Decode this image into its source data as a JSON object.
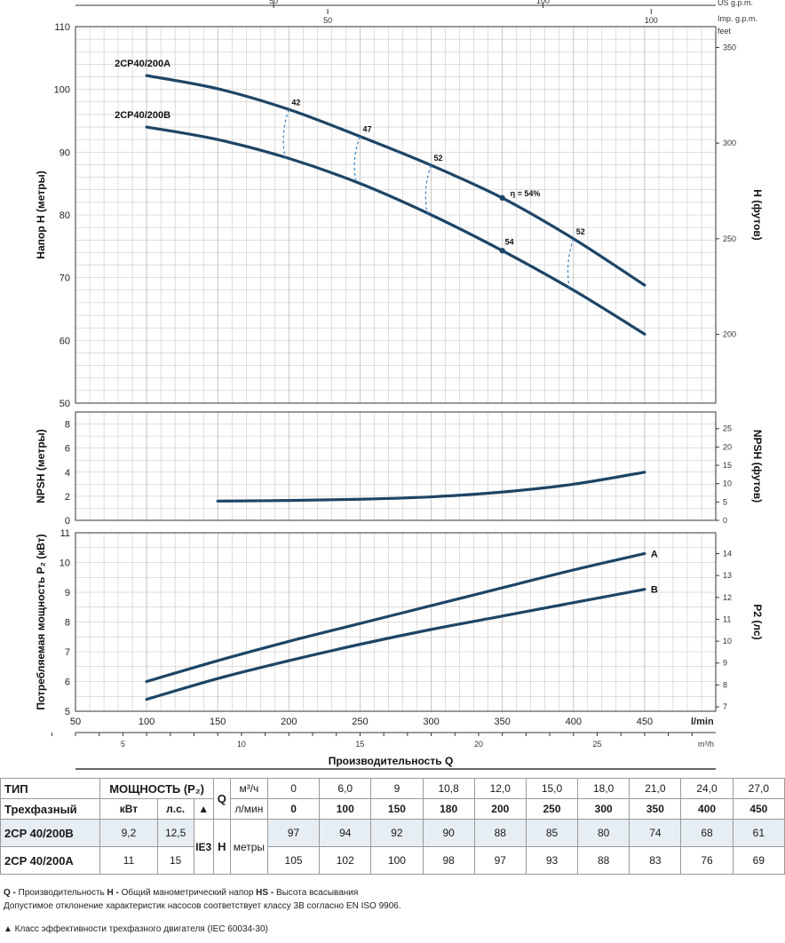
{
  "colors": {
    "curve": "#1d4566",
    "efficiency": "#3a7fc0",
    "grid": "#bfbfbf",
    "frame": "#333333",
    "row_shade": "#e6eef3"
  },
  "chart_data": [
    {
      "type": "line",
      "name": "head",
      "ylabel_left": "Напор H (метры)",
      "ylabel_right": "H (футов)",
      "ylim": [
        50,
        110
      ],
      "yticks": [
        50,
        60,
        70,
        80,
        90,
        100,
        110
      ],
      "yticks_right": [
        200,
        250,
        300,
        350
      ],
      "yunit_right": "feet",
      "top_axis_us": {
        "label": "US g.p.m.",
        "ticks": [
          50,
          100
        ]
      },
      "top_axis_imp": {
        "label": "Imp. g.p.m.",
        "ticks": [
          50,
          100
        ]
      },
      "series": [
        {
          "name": "2CP40/200A",
          "x": [
            100,
            150,
            200,
            250,
            300,
            350,
            400,
            450
          ],
          "y": [
            102.2,
            100.1,
            96.8,
            92.5,
            87.9,
            82.7,
            76.2,
            68.8
          ]
        },
        {
          "name": "2CP40/200B",
          "x": [
            100,
            150,
            200,
            250,
            300,
            350,
            400,
            450
          ],
          "y": [
            94.0,
            92.0,
            89.0,
            85.0,
            80.0,
            74.3,
            68.0,
            61.0
          ]
        }
      ],
      "efficiency": [
        {
          "label": "42",
          "q": 200
        },
        {
          "label": "47",
          "q": 250
        },
        {
          "label": "52",
          "q": 300
        },
        {
          "label": "η = 54%",
          "q": 350
        },
        {
          "label": "52",
          "q": 400
        }
      ],
      "points": [
        {
          "series": "2CP40/200A",
          "q": 350,
          "label": "η = 54%"
        },
        {
          "series": "2CP40/200B",
          "q": 350,
          "label": "54"
        }
      ]
    },
    {
      "type": "line",
      "name": "npsh",
      "ylabel_left": "NPSH (метры)",
      "ylabel_right": "NPSH (футов)",
      "ylim": [
        0,
        9
      ],
      "yticks": [
        0,
        2,
        4,
        6,
        8
      ],
      "yticks_right": [
        0,
        5,
        10,
        15,
        20,
        25
      ],
      "series": [
        {
          "name": "NPSH",
          "x": [
            150,
            200,
            250,
            300,
            350,
            400,
            450
          ],
          "y": [
            1.6,
            1.65,
            1.75,
            1.95,
            2.35,
            3.0,
            4.0
          ]
        }
      ]
    },
    {
      "type": "line",
      "name": "power",
      "ylabel_left": "Потребляемая мощность P₂ (кВт)",
      "ylabel_right": "P2 (лс)",
      "ylim": [
        5,
        11
      ],
      "yticks": [
        5,
        6,
        7,
        8,
        9,
        10,
        11
      ],
      "yticks_right": [
        7,
        8,
        9,
        10,
        11,
        12,
        13,
        14
      ],
      "series": [
        {
          "name": "A",
          "x": [
            100,
            150,
            200,
            250,
            300,
            350,
            400,
            450
          ],
          "y": [
            6.0,
            6.7,
            7.35,
            7.95,
            8.55,
            9.15,
            9.75,
            10.3
          ]
        },
        {
          "name": "B",
          "x": [
            100,
            150,
            200,
            250,
            300,
            350,
            400,
            450
          ],
          "y": [
            5.4,
            6.1,
            6.7,
            7.25,
            7.75,
            8.2,
            8.65,
            9.1
          ]
        }
      ],
      "xlabel_unit": "l/min",
      "xticks": [
        50,
        100,
        150,
        200,
        250,
        300,
        350,
        400,
        450
      ],
      "xlim": [
        50,
        500
      ],
      "m3h_unit": "m³/h",
      "m3h_ticks": [
        5,
        10,
        15,
        20,
        25
      ],
      "xlabel": "Производительность Q"
    }
  ],
  "table": {
    "tip": "ТИП",
    "moshch": "МОЩНОСТЬ (P₂)",
    "q_label": "Q",
    "q_unit_m3": "м³/ч",
    "q_unit_l": "л/мин",
    "trehfaz": "Трехфазный",
    "kvt": "кВт",
    "ls": "л.с.",
    "triangle": "▲",
    "h_label": "H",
    "h_unit": "метры",
    "ie": "IE3",
    "q_m3h": [
      "0",
      "6,0",
      "9",
      "10,8",
      "12,0",
      "15,0",
      "18,0",
      "21,0",
      "24,0",
      "27,0"
    ],
    "q_lmin": [
      "0",
      "100",
      "150",
      "180",
      "200",
      "250",
      "300",
      "350",
      "400",
      "450"
    ],
    "rows": [
      {
        "type": "2CP 40/200B",
        "kw": "9,2",
        "hp": "12,5",
        "h": [
          "97",
          "94",
          "92",
          "90",
          "88",
          "85",
          "80",
          "74",
          "68",
          "61"
        ]
      },
      {
        "type": "2CP 40/200A",
        "kw": "11",
        "hp": "15",
        "h": [
          "105",
          "102",
          "100",
          "98",
          "97",
          "93",
          "88",
          "83",
          "76",
          "69"
        ]
      }
    ]
  },
  "notes": {
    "line1_q": "Q -",
    "line1_q_text": " Производительность ",
    "line1_h": "H -",
    "line1_h_text": " Общий манометрический напор ",
    "line1_hs": "HS -",
    "line1_hs_text": " Высота всасывания",
    "line2": "Допустимое отклонение характеристик насосов соответствует классу 3B согласно EN ISO 9906.",
    "line3": "▲  Класс эффективности трехфазного двигателя (IEC 60034-30)"
  }
}
